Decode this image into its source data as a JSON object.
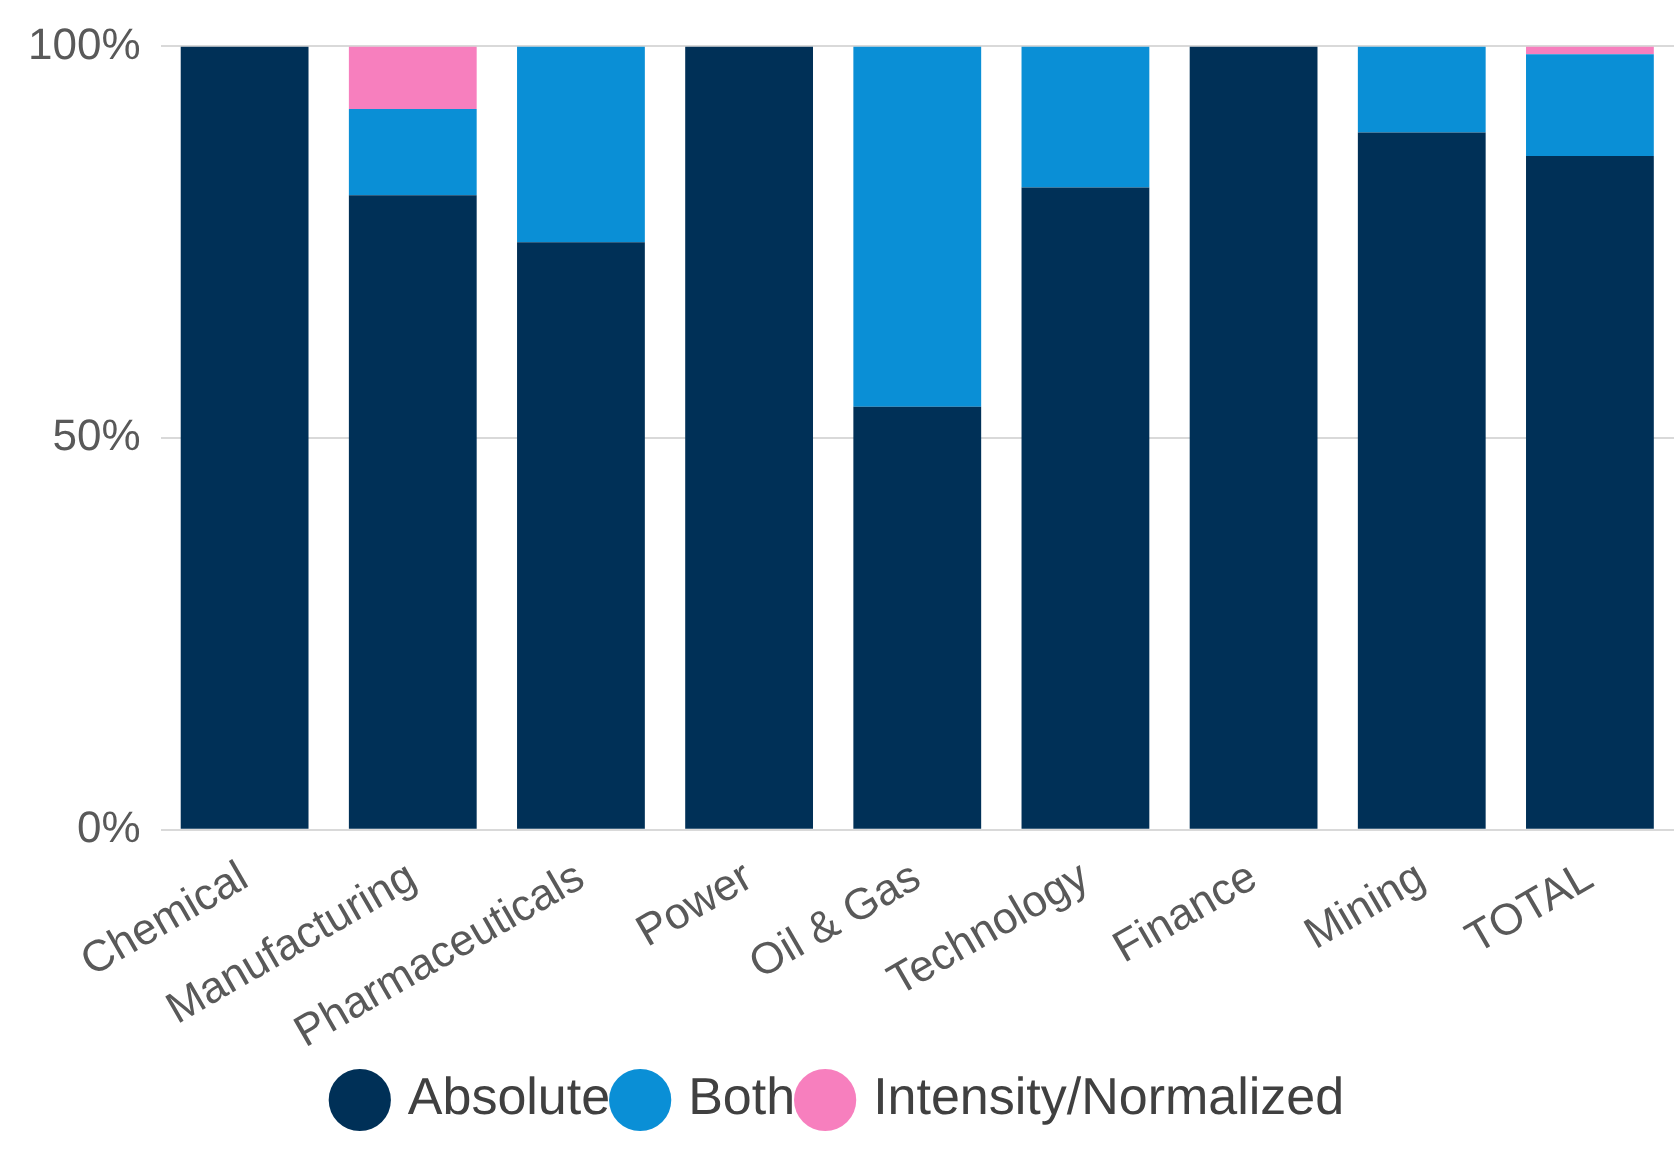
{
  "chart_data": {
    "type": "bar",
    "stacked": true,
    "categories": [
      "Chemical",
      "Manufacturing",
      "Pharmaceuticals",
      "Power",
      "Oil & Gas",
      "Technology",
      "Finance",
      "Mining",
      "TOTAL"
    ],
    "series": [
      {
        "name": "Absolute",
        "color": "#003057",
        "values": [
          100,
          81,
          75,
          100,
          54,
          82,
          100,
          89,
          86
        ]
      },
      {
        "name": "Both",
        "color": "#0a8fd6",
        "values": [
          0,
          11,
          25,
          0,
          46,
          18,
          0,
          11,
          13
        ]
      },
      {
        "name": "Intensity/Normalized",
        "color": "#f77fbe",
        "values": [
          0,
          8,
          0,
          0,
          0,
          0,
          0,
          0,
          1
        ]
      }
    ],
    "ylim": [
      0,
      100
    ],
    "yticks": [
      {
        "value": 0,
        "label": "0%"
      },
      {
        "value": 50,
        "label": "50%"
      },
      {
        "value": 100,
        "label": "100%"
      }
    ],
    "grid": "y",
    "legend": "bottom"
  }
}
